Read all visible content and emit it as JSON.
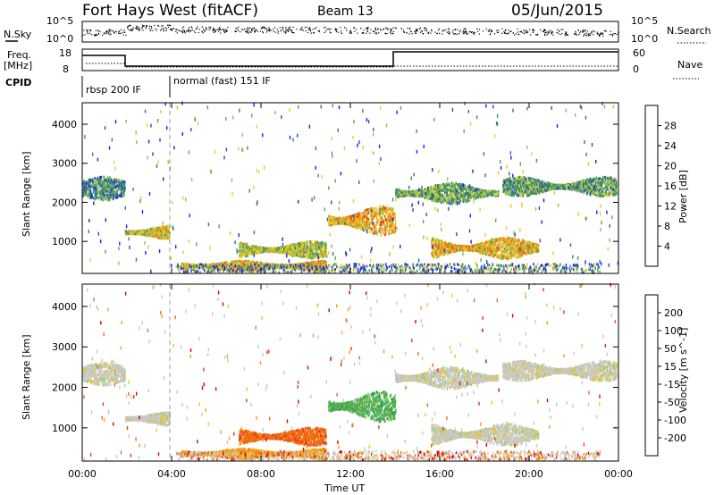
{
  "header": {
    "title": "Fort Hays West (fitACF)",
    "beam": "Beam 13",
    "date": "05/Jun/2015"
  },
  "top_panels": {
    "nsky_label": "N.Sky",
    "nsearch_label": "N.Search",
    "noise_left_ticks": [
      "10^5",
      "10^0"
    ],
    "noise_right_ticks": [
      "10^5",
      "10^0"
    ],
    "freq_label_1": "Freq.",
    "freq_label_2": "[MHz]",
    "freq_ticks": [
      "18",
      "8"
    ],
    "nave_label": "Nave",
    "nave_ticks": [
      "60",
      "0"
    ],
    "cpid_label": "CPID",
    "cpid_1": "rbsp 200 IF",
    "cpid_2": "normal (fast) 151 IF"
  },
  "chart_data": [
    {
      "type": "heatmap",
      "quantity": "Power",
      "ylabel": "Slant Range [km]",
      "xlabel": "Time UT",
      "x_ticks": [
        "00:00",
        "04:00",
        "08:00",
        "12:00",
        "16:00",
        "20:00",
        "00:00"
      ],
      "y_ticks": [
        "1000",
        "2000",
        "3000",
        "4000"
      ],
      "ylim": [
        180,
        4550
      ],
      "xlim_hours": [
        0,
        24
      ],
      "colorbar": {
        "label": "Power [dB]",
        "ticks": [
          "4",
          "8",
          "12",
          "16",
          "20",
          "24",
          "28"
        ],
        "range": [
          0,
          30
        ],
        "colors": [
          "#1a1aff",
          "#2346c8",
          "#2e6f8e",
          "#3a8a66",
          "#58a35a",
          "#8fc04f",
          "#d6d43b",
          "#f5c518",
          "#f59a18",
          "#f06a15",
          "#e6361b",
          "#d60000"
        ]
      },
      "regions": [
        {
          "start_h": 0.0,
          "end_h": 1.9,
          "range_lo": 2050,
          "range_hi": 2650,
          "level": 0.28
        },
        {
          "start_h": 1.9,
          "end_h": 3.9,
          "range_lo": 1050,
          "range_hi": 1400,
          "level": 0.55
        },
        {
          "start_h": 4.4,
          "end_h": 10.9,
          "range_lo": 230,
          "range_hi": 500,
          "level": 0.62
        },
        {
          "start_h": 7.0,
          "end_h": 10.9,
          "range_lo": 560,
          "range_hi": 1000,
          "level": 0.5
        },
        {
          "start_h": 11.0,
          "end_h": 14.0,
          "range_lo": 1150,
          "range_hi": 1900,
          "level": 0.65
        },
        {
          "start_h": 14.0,
          "end_h": 18.6,
          "range_lo": 1950,
          "range_hi": 2500,
          "level": 0.38
        },
        {
          "start_h": 18.8,
          "end_h": 23.9,
          "range_lo": 2150,
          "range_hi": 2650,
          "level": 0.36
        },
        {
          "start_h": 15.6,
          "end_h": 20.4,
          "range_lo": 550,
          "range_hi": 1100,
          "level": 0.62
        }
      ]
    },
    {
      "type": "heatmap",
      "quantity": "Velocity",
      "ylabel": "Slant Range [km]",
      "xlabel": "Time UT",
      "x_ticks": [
        "00:00",
        "04:00",
        "08:00",
        "12:00",
        "16:00",
        "20:00",
        "00:00"
      ],
      "y_ticks": [
        "1000",
        "2000",
        "3000",
        "4000"
      ],
      "ylim": [
        180,
        4550
      ],
      "xlim_hours": [
        0,
        24
      ],
      "colorbar": {
        "label": "Velocity [m s^-1]",
        "ticks": [
          "200",
          "100",
          "50",
          "15",
          "-15",
          "-50",
          "-100",
          "-200"
        ],
        "colors": [
          "#1a3cc8",
          "#2a64c8",
          "#2e8c6e",
          "#4fb04f",
          "#9bd05a",
          "#c8c8c8",
          "#f5c518",
          "#f5a018",
          "#f06a15",
          "#e6361b",
          "#d60000"
        ]
      },
      "regions": [
        {
          "start_h": 0.0,
          "end_h": 1.9,
          "range_lo": 2050,
          "range_hi": 2600,
          "velocity": "grey"
        },
        {
          "start_h": 1.9,
          "end_h": 3.9,
          "range_lo": 1050,
          "range_hi": 1400,
          "velocity": "grey"
        },
        {
          "start_h": 4.4,
          "end_h": 10.9,
          "range_lo": 230,
          "range_hi": 480,
          "velocity": "-50"
        },
        {
          "start_h": 7.0,
          "end_h": 10.9,
          "range_lo": 560,
          "range_hi": 1000,
          "velocity": "-100"
        },
        {
          "start_h": 11.0,
          "end_h": 14.0,
          "range_lo": 1150,
          "range_hi": 1900,
          "velocity": "50"
        },
        {
          "start_h": 14.0,
          "end_h": 18.6,
          "range_lo": 1950,
          "range_hi": 2500,
          "velocity": "grey"
        },
        {
          "start_h": 18.8,
          "end_h": 23.9,
          "range_lo": 2150,
          "range_hi": 2650,
          "velocity": "grey"
        },
        {
          "start_h": 15.6,
          "end_h": 20.4,
          "range_lo": 550,
          "range_hi": 1100,
          "velocity": "grey"
        }
      ]
    }
  ]
}
